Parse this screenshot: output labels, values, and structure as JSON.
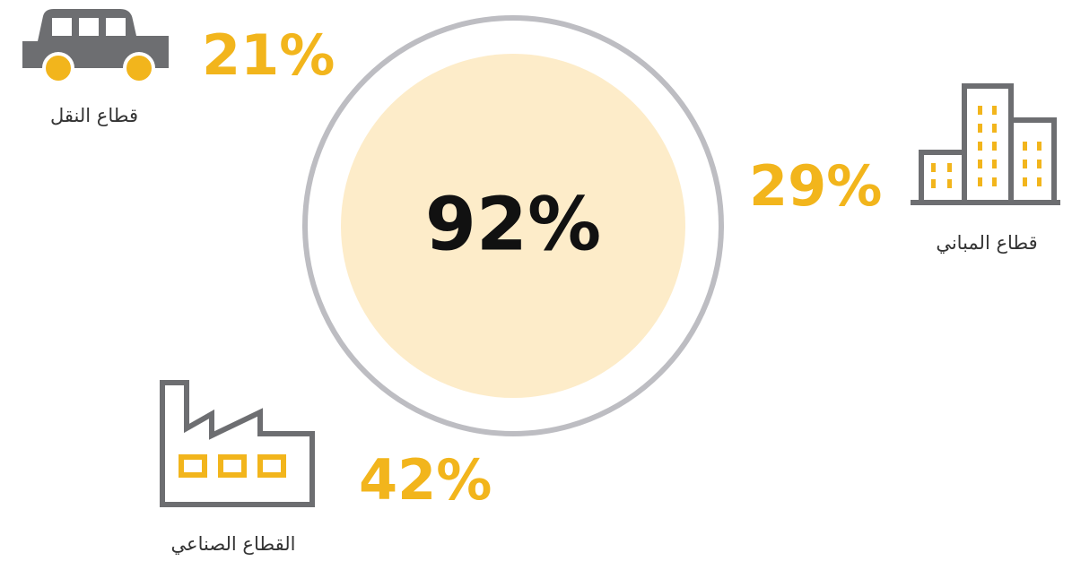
{
  "center": {
    "value": "92%"
  },
  "sectors": [
    {
      "value": "21%",
      "label": "قطاع النقل"
    },
    {
      "value": "29%",
      "label": "قطاع المباني"
    },
    {
      "value": "42%",
      "label": "القطاع الصناعي"
    }
  ]
}
